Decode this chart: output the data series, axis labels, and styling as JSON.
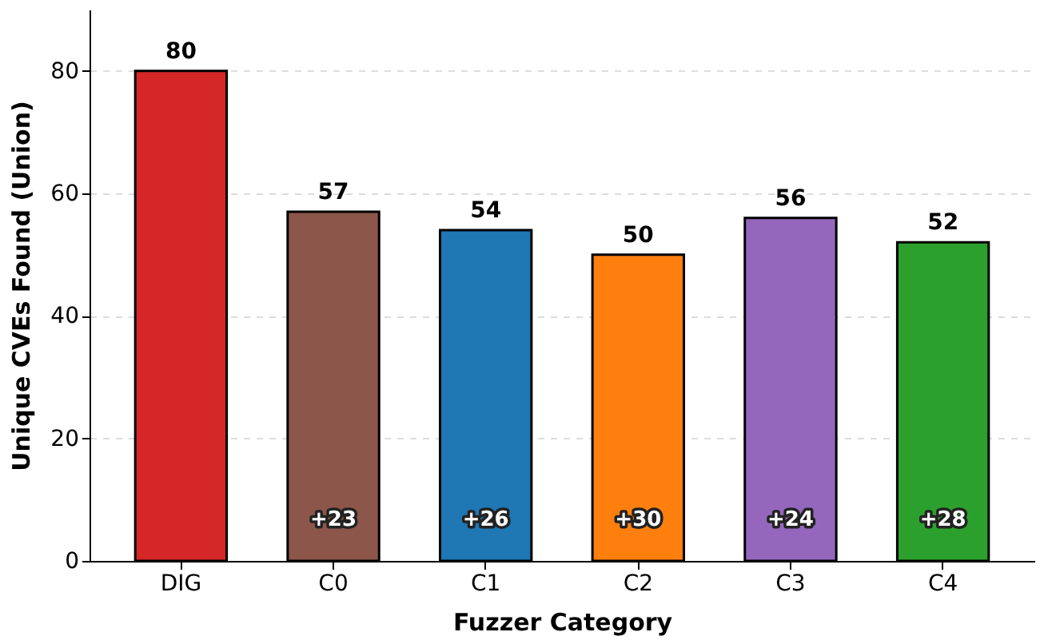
{
  "chart_data": {
    "type": "bar",
    "xlabel": "Fuzzer Category",
    "ylabel": "Unique CVEs Found (Union)",
    "categories": [
      "DIG",
      "C0",
      "C1",
      "C2",
      "C3",
      "C4"
    ],
    "values": [
      80,
      57,
      54,
      50,
      56,
      52
    ],
    "colors": [
      "#d62728",
      "#8c564b",
      "#1f77b4",
      "#ff7f0e",
      "#9467bd",
      "#2ca02c"
    ],
    "ylim": [
      0,
      90
    ],
    "yticks": [
      0,
      20,
      40,
      60,
      80
    ],
    "grid": "y",
    "data_labels": true,
    "annotations": [
      "+23",
      "+26",
      "+30",
      "+24",
      "+28"
    ]
  }
}
